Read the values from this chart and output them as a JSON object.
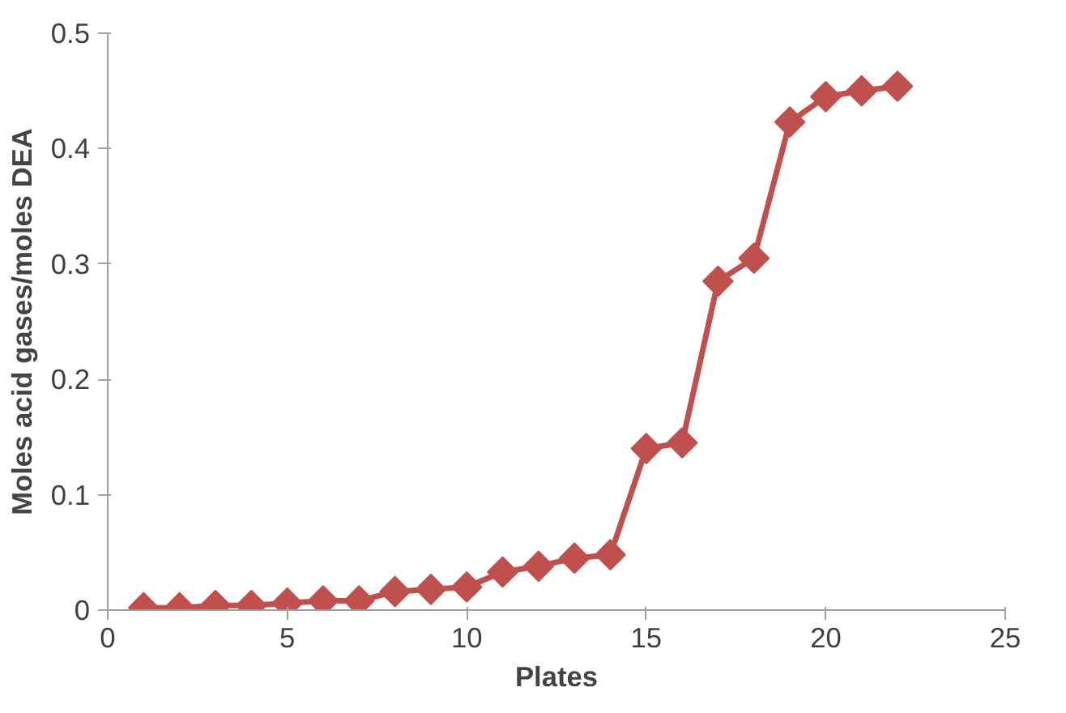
{
  "chart_data": {
    "type": "line",
    "xlabel": "Plates",
    "ylabel": "Moles acid gases/moles DEA",
    "x": [
      1,
      2,
      3,
      4,
      5,
      6,
      7,
      8,
      9,
      10,
      11,
      12,
      13,
      14,
      15,
      16,
      17,
      18,
      19,
      20,
      21,
      22
    ],
    "series": [
      {
        "color": "#c0504d",
        "values": [
          0.002,
          0.002,
          0.004,
          0.004,
          0.006,
          0.008,
          0.008,
          0.016,
          0.018,
          0.02,
          0.033,
          0.038,
          0.045,
          0.048,
          0.14,
          0.145,
          0.285,
          0.305,
          0.423,
          0.445,
          0.45,
          0.454
        ]
      }
    ],
    "xlim": [
      0,
      25
    ],
    "ylim": [
      0,
      0.5
    ],
    "xticks": [
      0,
      5,
      10,
      15,
      20,
      25
    ],
    "yticks": [
      0,
      0.1,
      0.2,
      0.3,
      0.4,
      0.5
    ],
    "grid": false,
    "marker": "diamond",
    "line_style": "solid"
  }
}
